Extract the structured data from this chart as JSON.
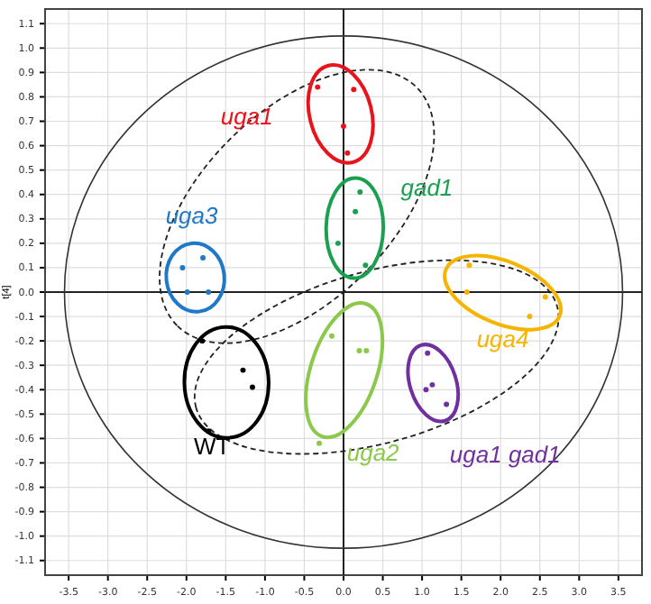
{
  "chart_data": {
    "type": "scatter",
    "ylabel": "t[4]",
    "xlim": [
      -3.8,
      3.8
    ],
    "ylim": [
      -1.16,
      1.16
    ],
    "xticks": [
      -3.5,
      {
        "value": -3,
        "label": "-3.0"
      },
      -2.5,
      {
        "value": -2,
        "label": "-2.0"
      },
      -1.5,
      {
        "value": -1,
        "label": "-1.0"
      },
      -0.5,
      {
        "value": 0,
        "label": "0.0"
      },
      0.5,
      {
        "value": 1,
        "label": "1.0"
      },
      1.5,
      {
        "value": 2,
        "label": "2.0"
      },
      2.5,
      {
        "value": 3,
        "label": "3.0"
      },
      3.5
    ],
    "yticks": [
      -1.1,
      {
        "value": -1,
        "label": "-1.0"
      },
      -0.9,
      -0.8,
      -0.7,
      -0.6,
      -0.5,
      -0.4,
      -0.3,
      -0.2,
      -0.1,
      {
        "value": 0,
        "label": "0.0"
      },
      0.1,
      0.2,
      0.3,
      0.4,
      0.5,
      0.6,
      0.7,
      0.8,
      0.9,
      {
        "value": 1,
        "label": "1.0"
      },
      1.1
    ],
    "grid": true,
    "marker": "circle",
    "series": [
      {
        "name": "uga1",
        "color": "#e8141c",
        "x": [
          -0.33,
          0.13,
          0.0,
          0.05
        ],
        "values": [
          0.84,
          0.83,
          0.68,
          0.57
        ]
      },
      {
        "name": "gad1",
        "color": "#1aa050",
        "x": [
          0.21,
          0.15,
          -0.07,
          0.28
        ],
        "values": [
          0.41,
          0.33,
          0.2,
          0.11
        ]
      },
      {
        "name": "uga3",
        "color": "#1f78c8",
        "x": [
          -2.05,
          -1.79,
          -1.99,
          -1.72
        ],
        "values": [
          0.1,
          0.14,
          0.0,
          0.0
        ]
      },
      {
        "name": "uga4",
        "color": "#f5b400",
        "x": [
          1.6,
          1.57,
          2.57,
          2.37
        ],
        "values": [
          0.11,
          0.0,
          -0.02,
          -0.1
        ]
      },
      {
        "name": "WT",
        "color": "#000000",
        "x": [
          -1.8,
          -1.28,
          -1.16,
          -1.72
        ],
        "values": [
          -0.2,
          -0.32,
          -0.39,
          -0.57
        ]
      },
      {
        "name": "uga2",
        "color": "#8cc84b",
        "x": [
          -0.15,
          0.2,
          0.29,
          -0.31
        ],
        "values": [
          -0.18,
          -0.24,
          -0.24,
          -0.62
        ]
      },
      {
        "name": "uga1 gad1",
        "color": "#7030a0",
        "x": [
          1.07,
          1.13,
          1.05,
          1.31
        ],
        "values": [
          -0.25,
          -0.38,
          -0.4,
          -0.46
        ]
      }
    ]
  }
}
